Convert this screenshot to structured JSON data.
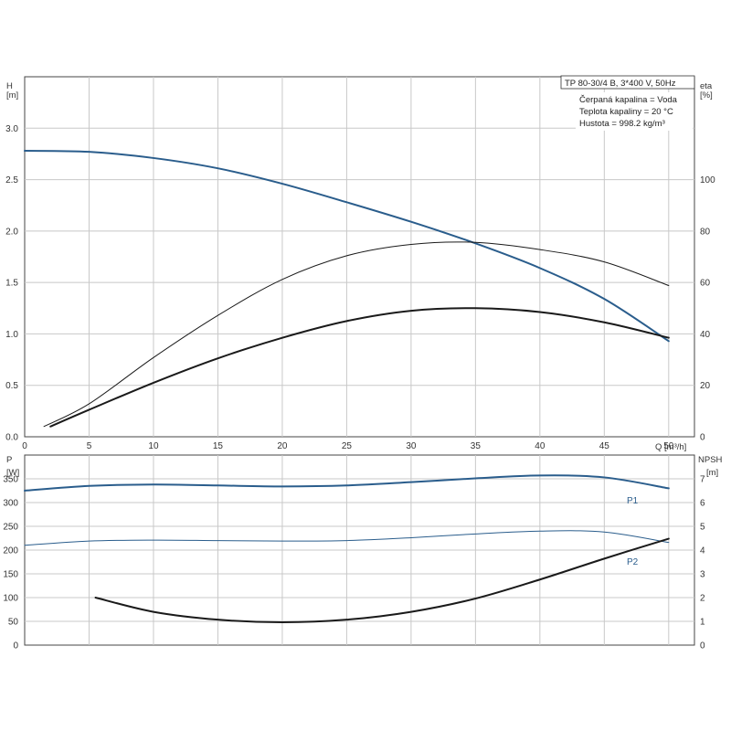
{
  "info": {
    "model_line": "TP 80-30/4 B, 3*400 V, 50Hz",
    "liquid_line": "Čerpaná kapalina = Voda",
    "temp_line": "Teplota kapaliny = 20 °C",
    "density_line": "Hustota = 998.2 kg/m³"
  },
  "colors": {
    "blue": "#2a5d8c",
    "black": "#1a1a1a",
    "grid": "#c8c8c8"
  },
  "chart_data": [
    {
      "type": "line",
      "name": "performance",
      "x_label": "Q [m³/h]",
      "y_left_label": [
        "H",
        "[m]"
      ],
      "y_right_label": [
        "eta",
        "[%]"
      ],
      "xlim": [
        0,
        52
      ],
      "ylim_left": [
        0,
        3.5
      ],
      "ylim_right": [
        0,
        140
      ],
      "x_ticks": [
        0,
        5,
        10,
        15,
        20,
        25,
        30,
        35,
        40,
        45,
        50
      ],
      "y_left_ticks": [
        0.0,
        0.5,
        1.0,
        1.5,
        2.0,
        2.5,
        3.0
      ],
      "y_right_ticks": [
        0,
        20,
        40,
        60,
        80,
        100
      ],
      "grid": true,
      "series": [
        {
          "id": "H",
          "axis": "left",
          "color": "#2a5d8c",
          "width": 2,
          "points": [
            [
              0,
              2.78
            ],
            [
              5,
              2.77
            ],
            [
              10,
              2.71
            ],
            [
              15,
              2.61
            ],
            [
              20,
              2.46
            ],
            [
              25,
              2.28
            ],
            [
              30,
              2.09
            ],
            [
              35,
              1.88
            ],
            [
              40,
              1.64
            ],
            [
              45,
              1.34
            ],
            [
              50,
              0.93
            ]
          ]
        },
        {
          "id": "H_thin",
          "axis": "left",
          "color": "#1a1a1a",
          "width": 1,
          "points": [
            [
              1.5,
              0.1
            ],
            [
              5,
              0.32
            ],
            [
              10,
              0.77
            ],
            [
              15,
              1.18
            ],
            [
              20,
              1.53
            ],
            [
              25,
              1.76
            ],
            [
              30,
              1.87
            ],
            [
              35,
              1.89
            ],
            [
              40,
              1.82
            ],
            [
              45,
              1.7
            ],
            [
              50,
              1.47
            ]
          ]
        },
        {
          "id": "eta",
          "axis": "right",
          "color": "#1a1a1a",
          "width": 2,
          "points": [
            [
              2,
              4
            ],
            [
              5,
              10.5
            ],
            [
              10,
              21
            ],
            [
              15,
              30.5
            ],
            [
              20,
              38.5
            ],
            [
              25,
              45
            ],
            [
              30,
              49
            ],
            [
              35,
              50
            ],
            [
              40,
              48.5
            ],
            [
              45,
              44.5
            ],
            [
              50,
              38.5
            ]
          ]
        }
      ]
    },
    {
      "type": "line",
      "name": "power-npsh",
      "x_label": "",
      "y_left_label": [
        "P",
        "[W]"
      ],
      "y_right_label": [
        "NPSH",
        "[m]"
      ],
      "xlim": [
        0,
        52
      ],
      "ylim_left": [
        0,
        400
      ],
      "ylim_right": [
        0,
        8
      ],
      "y_left_ticks": [
        0,
        50,
        100,
        150,
        200,
        250,
        300,
        350
      ],
      "y_right_ticks": [
        0,
        1,
        2,
        3,
        4,
        5,
        6,
        7
      ],
      "grid": true,
      "series": [
        {
          "id": "P1",
          "name": "P1",
          "axis": "left",
          "color": "#2a5d8c",
          "width": 2,
          "points": [
            [
              0,
              325
            ],
            [
              5,
              335
            ],
            [
              10,
              338
            ],
            [
              15,
              336
            ],
            [
              20,
              334
            ],
            [
              25,
              336
            ],
            [
              30,
              343
            ],
            [
              35,
              351
            ],
            [
              40,
              357
            ],
            [
              45,
              353
            ],
            [
              50,
              330
            ]
          ]
        },
        {
          "id": "P2",
          "name": "P2",
          "axis": "left",
          "color": "#2a5d8c",
          "width": 1,
          "points": [
            [
              0,
              210
            ],
            [
              5,
              219
            ],
            [
              10,
              221
            ],
            [
              15,
              220
            ],
            [
              20,
              219
            ],
            [
              25,
              220
            ],
            [
              30,
              226
            ],
            [
              35,
              234
            ],
            [
              40,
              240
            ],
            [
              45,
              238
            ],
            [
              50,
              216
            ]
          ]
        },
        {
          "id": "NPSH",
          "axis": "right",
          "color": "#1a1a1a",
          "width": 2,
          "points": [
            [
              5.5,
              2.0
            ],
            [
              10,
              1.4
            ],
            [
              15,
              1.07
            ],
            [
              20,
              0.96
            ],
            [
              25,
              1.07
            ],
            [
              30,
              1.4
            ],
            [
              35,
              1.96
            ],
            [
              40,
              2.76
            ],
            [
              45,
              3.64
            ],
            [
              50,
              4.48
            ]
          ]
        }
      ]
    }
  ]
}
